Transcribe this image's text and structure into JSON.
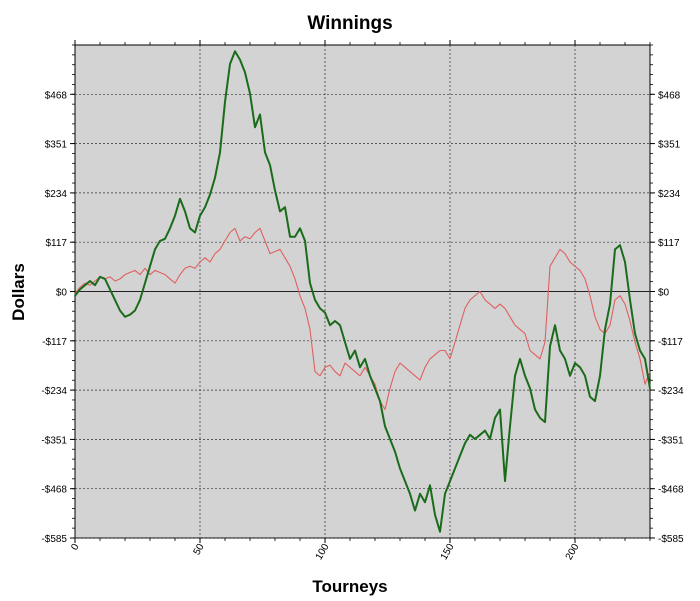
{
  "chart_data": {
    "type": "line",
    "title": "Winnings",
    "xlabel": "Tourneys",
    "ylabel": "Dollars",
    "xlim": [
      0,
      230
    ],
    "ylim": [
      -585,
      585
    ],
    "x_ticks": [
      0,
      50,
      100,
      150,
      200
    ],
    "x_tick_labels": [
      "0",
      "50",
      "100",
      "150",
      "200"
    ],
    "y_ticks": [
      468,
      351,
      234,
      117,
      0,
      -117,
      -234,
      -351,
      -468,
      -585
    ],
    "y_tick_labels": [
      "$468",
      "$351",
      "$234",
      "$117",
      "$0",
      "-$117",
      "-$234",
      "-$351",
      "-$468",
      "-$585"
    ],
    "grid": true,
    "legend": "none",
    "plot_background": "#d3d3d3",
    "series": [
      {
        "color": "#1a6b1a",
        "points": [
          [
            0,
            -10
          ],
          [
            2,
            5
          ],
          [
            4,
            15
          ],
          [
            6,
            25
          ],
          [
            8,
            15
          ],
          [
            10,
            35
          ],
          [
            12,
            30
          ],
          [
            14,
            5
          ],
          [
            16,
            -20
          ],
          [
            18,
            -45
          ],
          [
            20,
            -60
          ],
          [
            22,
            -55
          ],
          [
            24,
            -45
          ],
          [
            26,
            -20
          ],
          [
            28,
            20
          ],
          [
            30,
            60
          ],
          [
            32,
            100
          ],
          [
            34,
            120
          ],
          [
            36,
            125
          ],
          [
            38,
            150
          ],
          [
            40,
            180
          ],
          [
            42,
            220
          ],
          [
            44,
            190
          ],
          [
            46,
            150
          ],
          [
            48,
            140
          ],
          [
            50,
            180
          ],
          [
            52,
            200
          ],
          [
            54,
            230
          ],
          [
            56,
            270
          ],
          [
            58,
            330
          ],
          [
            60,
            450
          ],
          [
            62,
            540
          ],
          [
            64,
            570
          ],
          [
            66,
            550
          ],
          [
            68,
            520
          ],
          [
            70,
            470
          ],
          [
            72,
            390
          ],
          [
            74,
            420
          ],
          [
            76,
            330
          ],
          [
            78,
            300
          ],
          [
            80,
            240
          ],
          [
            82,
            190
          ],
          [
            84,
            200
          ],
          [
            86,
            130
          ],
          [
            88,
            130
          ],
          [
            90,
            150
          ],
          [
            92,
            120
          ],
          [
            94,
            20
          ],
          [
            96,
            -20
          ],
          [
            98,
            -40
          ],
          [
            100,
            -50
          ],
          [
            102,
            -80
          ],
          [
            104,
            -70
          ],
          [
            106,
            -80
          ],
          [
            108,
            -120
          ],
          [
            110,
            -160
          ],
          [
            112,
            -140
          ],
          [
            114,
            -180
          ],
          [
            116,
            -160
          ],
          [
            118,
            -200
          ],
          [
            120,
            -230
          ],
          [
            122,
            -260
          ],
          [
            124,
            -320
          ],
          [
            126,
            -350
          ],
          [
            128,
            -380
          ],
          [
            130,
            -420
          ],
          [
            132,
            -450
          ],
          [
            134,
            -480
          ],
          [
            136,
            -520
          ],
          [
            138,
            -480
          ],
          [
            140,
            -500
          ],
          [
            142,
            -460
          ],
          [
            144,
            -530
          ],
          [
            146,
            -570
          ],
          [
            148,
            -480
          ],
          [
            150,
            -450
          ],
          [
            152,
            -420
          ],
          [
            154,
            -390
          ],
          [
            156,
            -360
          ],
          [
            158,
            -340
          ],
          [
            160,
            -350
          ],
          [
            162,
            -340
          ],
          [
            164,
            -330
          ],
          [
            166,
            -350
          ],
          [
            168,
            -300
          ],
          [
            170,
            -280
          ],
          [
            172,
            -450
          ],
          [
            174,
            -320
          ],
          [
            176,
            -200
          ],
          [
            178,
            -160
          ],
          [
            180,
            -200
          ],
          [
            182,
            -230
          ],
          [
            184,
            -280
          ],
          [
            186,
            -300
          ],
          [
            188,
            -310
          ],
          [
            190,
            -130
          ],
          [
            192,
            -80
          ],
          [
            194,
            -140
          ],
          [
            196,
            -160
          ],
          [
            198,
            -200
          ],
          [
            200,
            -170
          ],
          [
            202,
            -180
          ],
          [
            204,
            -200
          ],
          [
            206,
            -250
          ],
          [
            208,
            -260
          ],
          [
            210,
            -200
          ],
          [
            212,
            -90
          ],
          [
            214,
            -30
          ],
          [
            216,
            100
          ],
          [
            218,
            110
          ],
          [
            220,
            70
          ],
          [
            222,
            -20
          ],
          [
            224,
            -100
          ],
          [
            226,
            -140
          ],
          [
            228,
            -160
          ],
          [
            230,
            -230
          ]
        ]
      },
      {
        "color": "#e06060",
        "points": [
          [
            0,
            -5
          ],
          [
            2,
            10
          ],
          [
            4,
            20
          ],
          [
            6,
            15
          ],
          [
            8,
            25
          ],
          [
            10,
            35
          ],
          [
            12,
            30
          ],
          [
            14,
            35
          ],
          [
            16,
            25
          ],
          [
            18,
            30
          ],
          [
            20,
            40
          ],
          [
            22,
            45
          ],
          [
            24,
            50
          ],
          [
            26,
            40
          ],
          [
            28,
            55
          ],
          [
            30,
            40
          ],
          [
            32,
            50
          ],
          [
            34,
            45
          ],
          [
            36,
            40
          ],
          [
            38,
            30
          ],
          [
            40,
            20
          ],
          [
            42,
            40
          ],
          [
            44,
            55
          ],
          [
            46,
            60
          ],
          [
            48,
            55
          ],
          [
            50,
            70
          ],
          [
            52,
            80
          ],
          [
            54,
            70
          ],
          [
            56,
            90
          ],
          [
            58,
            100
          ],
          [
            60,
            120
          ],
          [
            62,
            140
          ],
          [
            64,
            150
          ],
          [
            66,
            120
          ],
          [
            68,
            130
          ],
          [
            70,
            125
          ],
          [
            72,
            140
          ],
          [
            74,
            150
          ],
          [
            76,
            120
          ],
          [
            78,
            90
          ],
          [
            80,
            95
          ],
          [
            82,
            100
          ],
          [
            84,
            80
          ],
          [
            86,
            60
          ],
          [
            88,
            30
          ],
          [
            90,
            -10
          ],
          [
            92,
            -40
          ],
          [
            94,
            -90
          ],
          [
            96,
            -190
          ],
          [
            98,
            -200
          ],
          [
            100,
            -180
          ],
          [
            102,
            -175
          ],
          [
            104,
            -190
          ],
          [
            106,
            -200
          ],
          [
            108,
            -170
          ],
          [
            110,
            -180
          ],
          [
            112,
            -190
          ],
          [
            114,
            -200
          ],
          [
            116,
            -180
          ],
          [
            118,
            -200
          ],
          [
            120,
            -220
          ],
          [
            122,
            -260
          ],
          [
            124,
            -280
          ],
          [
            126,
            -230
          ],
          [
            128,
            -190
          ],
          [
            130,
            -170
          ],
          [
            132,
            -180
          ],
          [
            134,
            -190
          ],
          [
            136,
            -200
          ],
          [
            138,
            -210
          ],
          [
            140,
            -180
          ],
          [
            142,
            -160
          ],
          [
            144,
            -150
          ],
          [
            146,
            -140
          ],
          [
            148,
            -140
          ],
          [
            150,
            -160
          ],
          [
            152,
            -120
          ],
          [
            154,
            -80
          ],
          [
            156,
            -40
          ],
          [
            158,
            -20
          ],
          [
            160,
            -10
          ],
          [
            162,
            0
          ],
          [
            164,
            -20
          ],
          [
            166,
            -30
          ],
          [
            168,
            -40
          ],
          [
            170,
            -30
          ],
          [
            172,
            -40
          ],
          [
            174,
            -60
          ],
          [
            176,
            -80
          ],
          [
            178,
            -90
          ],
          [
            180,
            -100
          ],
          [
            182,
            -140
          ],
          [
            184,
            -150
          ],
          [
            186,
            -160
          ],
          [
            188,
            -120
          ],
          [
            190,
            60
          ],
          [
            192,
            80
          ],
          [
            194,
            100
          ],
          [
            196,
            90
          ],
          [
            198,
            70
          ],
          [
            200,
            60
          ],
          [
            202,
            50
          ],
          [
            204,
            30
          ],
          [
            206,
            -10
          ],
          [
            208,
            -60
          ],
          [
            210,
            -90
          ],
          [
            212,
            -100
          ],
          [
            214,
            -80
          ],
          [
            216,
            -20
          ],
          [
            218,
            -10
          ],
          [
            220,
            -30
          ],
          [
            222,
            -70
          ],
          [
            224,
            -120
          ],
          [
            226,
            -160
          ],
          [
            228,
            -220
          ],
          [
            230,
            -190
          ]
        ]
      }
    ]
  }
}
